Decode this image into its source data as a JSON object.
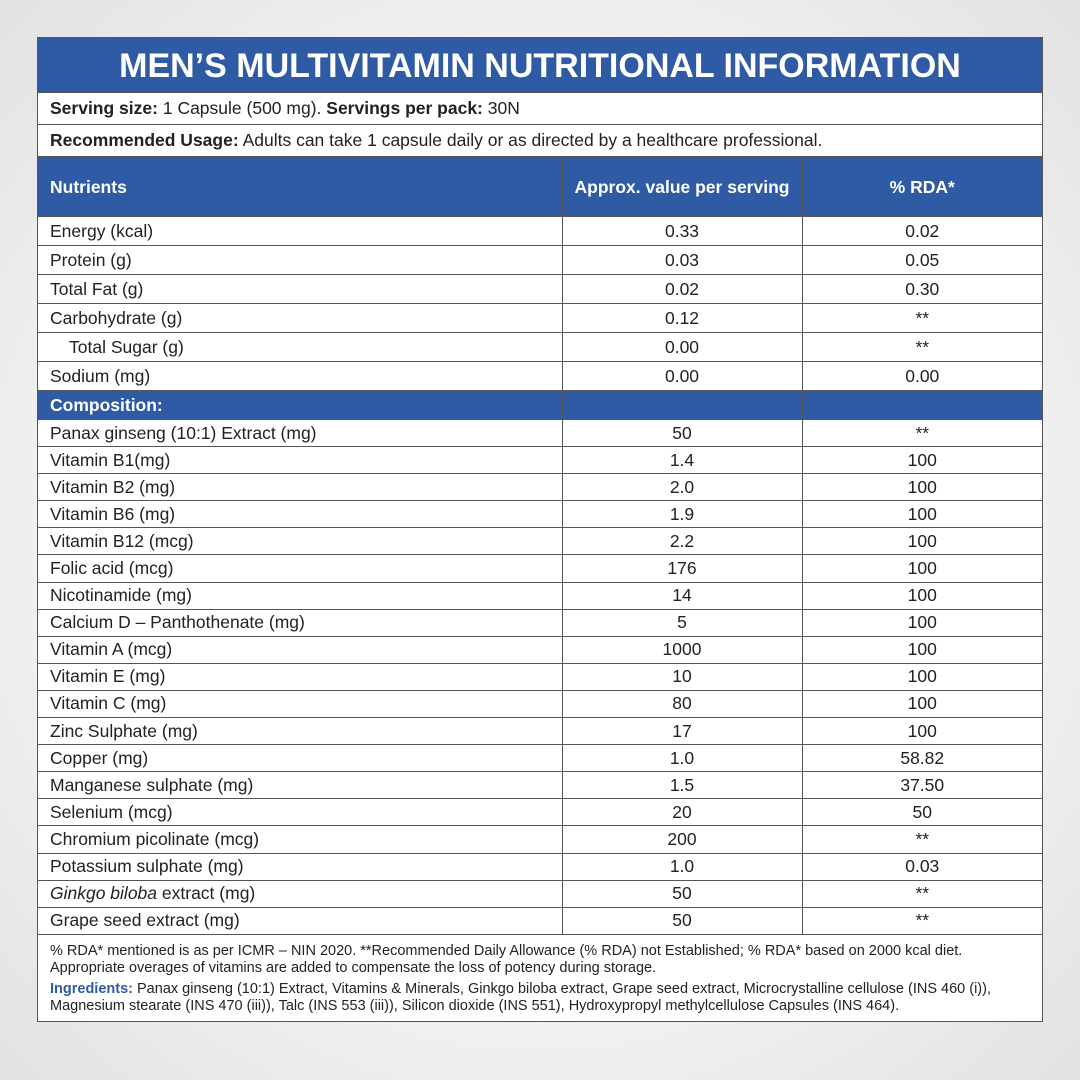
{
  "title": "MEN’S MULTIVITAMIN NUTRITIONAL INFORMATION",
  "serving": {
    "size_label": "Serving size:",
    "size_value": "1 Capsule (500 mg).",
    "pack_label": "Servings per pack:",
    "pack_value": "30N"
  },
  "usage": {
    "label": "Recommended Usage:",
    "text": "Adults can take 1 capsule daily or as directed by a healthcare professional."
  },
  "table": {
    "header": [
      "Nutrients",
      "Approx. value per serving",
      "% RDA*"
    ],
    "nutrients": [
      {
        "name": "Energy (kcal)",
        "value": "0.33",
        "rda": "0.02"
      },
      {
        "name": "Protein (g)",
        "value": "0.03",
        "rda": "0.05"
      },
      {
        "name": "Total Fat (g)",
        "value": "0.02",
        "rda": "0.30"
      },
      {
        "name": "Carbohydrate (g)",
        "value": "0.12",
        "rda": "**"
      },
      {
        "name": "Total Sugar (g)",
        "value": "0.00",
        "rda": "**",
        "sub": true
      },
      {
        "name": "Sodium (mg)",
        "value": "0.00",
        "rda": "0.00"
      }
    ],
    "composition_label": "Composition:",
    "composition": [
      {
        "name": "Panax ginseng (10:1) Extract (mg)",
        "value": "50",
        "rda": "**"
      },
      {
        "name": "Vitamin B1(mg)",
        "value": "1.4",
        "rda": "100"
      },
      {
        "name": "Vitamin B2 (mg)",
        "value": "2.0",
        "rda": "100"
      },
      {
        "name": "Vitamin B6 (mg)",
        "value": "1.9",
        "rda": "100"
      },
      {
        "name": "Vitamin B12 (mcg)",
        "value": "2.2",
        "rda": "100"
      },
      {
        "name": "Folic acid (mcg)",
        "value": "176",
        "rda": "100"
      },
      {
        "name": "Nicotinamide (mg)",
        "value": "14",
        "rda": "100"
      },
      {
        "name": "Calcium D – Panthothenate (mg)",
        "value": "5",
        "rda": "100"
      },
      {
        "name": "Vitamin A (mcg)",
        "value": "1000",
        "rda": "100"
      },
      {
        "name": "Vitamin E (mg)",
        "value": "10",
        "rda": "100"
      },
      {
        "name": "Vitamin C (mg)",
        "value": "80",
        "rda": "100"
      },
      {
        "name": "Zinc Sulphate (mg)",
        "value": "17",
        "rda": "100"
      },
      {
        "name": "Copper (mg)",
        "value": "1.0",
        "rda": "58.82"
      },
      {
        "name": "Manganese sulphate (mg)",
        "value": "1.5",
        "rda": "37.50"
      },
      {
        "name": "Selenium (mcg)",
        "value": "20",
        "rda": "50"
      },
      {
        "name": "Chromium picolinate (mcg)",
        "value": "200",
        "rda": "**"
      },
      {
        "name": "Potassium sulphate (mg)",
        "value": "1.0",
        "rda": "0.03"
      },
      {
        "name_italic": "Ginkgo biloba",
        "name": "extract (mg)",
        "value": "50",
        "rda": "**"
      },
      {
        "name": "Grape seed extract (mg)",
        "value": "50",
        "rda": "**"
      }
    ]
  },
  "footer": {
    "note": "% RDA* mentioned is as per ICMR – NIN 2020. **Recommended Daily Allowance (% RDA) not Established; % RDA* based on 2000 kcal diet. Appropriate overages of vitamins are added to compensate the loss of potency during storage.",
    "ingredients_label": "Ingredients:",
    "ingredients_text": "Panax ginseng (10:1) Extract, Vitamins & Minerals, Ginkgo biloba extract, Grape seed extract, Microcrystalline cellulose (INS 460 (i)), Magnesium stearate (INS 470 (iii)), Talc (INS 553 (iii)), Silicon dioxide (INS 551), Hydroxypropyl methylcellulose Capsules (INS 464)."
  }
}
